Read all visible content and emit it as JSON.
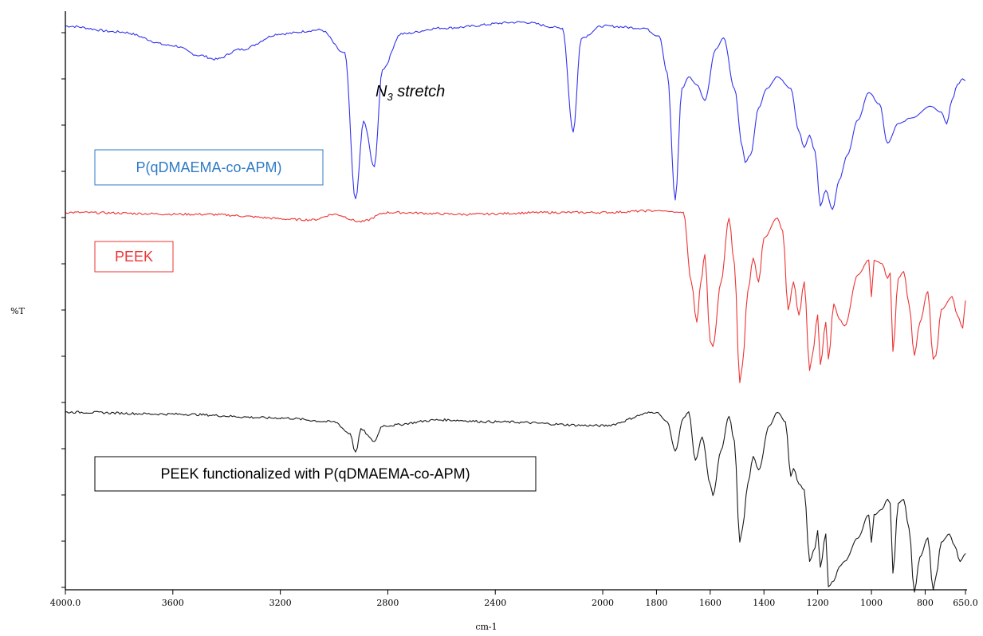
{
  "chart_data": {
    "type": "line",
    "xlabel": "cm-1",
    "ylabel": "%T",
    "xlim": [
      4000,
      650
    ],
    "x_reversed": true,
    "x_ticks": [
      "4000.0",
      "3600",
      "3200",
      "2800",
      "2400",
      "2000",
      "1800",
      "1600",
      "1400",
      "1200",
      "1000",
      "800",
      "650.0"
    ],
    "y_tick_count": 13,
    "y_tick_values_printed": false,
    "grid": false,
    "annotation": {
      "symbol": "N",
      "subscript": "3",
      "text": " stretch"
    },
    "series": [
      {
        "name": "P(qDMAEMA-co-APM)",
        "color": "#3333ee",
        "label_color": "#2e7bc4",
        "box_color": "#2e7bc4",
        "points": [
          [
            4000,
            0.94
          ],
          [
            3800,
            0.91
          ],
          [
            3600,
            0.84
          ],
          [
            3500,
            0.79
          ],
          [
            3440,
            0.77
          ],
          [
            3350,
            0.82
          ],
          [
            3200,
            0.9
          ],
          [
            3050,
            0.92
          ],
          [
            2960,
            0.8
          ],
          [
            2920,
            0.05
          ],
          [
            2890,
            0.45
          ],
          [
            2850,
            0.22
          ],
          [
            2820,
            0.72
          ],
          [
            2750,
            0.9
          ],
          [
            2600,
            0.93
          ],
          [
            2300,
            0.96
          ],
          [
            2150,
            0.93
          ],
          [
            2110,
            0.4
          ],
          [
            2080,
            0.88
          ],
          [
            2000,
            0.94
          ],
          [
            1850,
            0.93
          ],
          [
            1790,
            0.89
          ],
          [
            1760,
            0.7
          ],
          [
            1730,
            0.05
          ],
          [
            1705,
            0.62
          ],
          [
            1680,
            0.68
          ],
          [
            1650,
            0.64
          ],
          [
            1620,
            0.56
          ],
          [
            1580,
            0.82
          ],
          [
            1550,
            0.88
          ],
          [
            1510,
            0.62
          ],
          [
            1480,
            0.32
          ],
          [
            1470,
            0.24
          ],
          [
            1450,
            0.28
          ],
          [
            1420,
            0.52
          ],
          [
            1390,
            0.62
          ],
          [
            1350,
            0.68
          ],
          [
            1300,
            0.62
          ],
          [
            1270,
            0.4
          ],
          [
            1250,
            0.32
          ],
          [
            1230,
            0.38
          ],
          [
            1210,
            0.3
          ],
          [
            1190,
            0.02
          ],
          [
            1170,
            0.1
          ],
          [
            1145,
            0.0
          ],
          [
            1120,
            0.15
          ],
          [
            1090,
            0.28
          ],
          [
            1050,
            0.46
          ],
          [
            1010,
            0.6
          ],
          [
            970,
            0.54
          ],
          [
            940,
            0.34
          ],
          [
            900,
            0.44
          ],
          [
            850,
            0.47
          ],
          [
            780,
            0.53
          ],
          [
            740,
            0.5
          ],
          [
            720,
            0.44
          ],
          [
            700,
            0.56
          ],
          [
            680,
            0.64
          ],
          [
            660,
            0.67
          ],
          [
            650,
            0.66
          ]
        ]
      },
      {
        "name": "PEEK",
        "color": "#ee3333",
        "label_color": "#ee3333",
        "box_color": "#ee3333",
        "points": [
          [
            4000,
            0.98
          ],
          [
            3500,
            0.97
          ],
          [
            3080,
            0.94
          ],
          [
            3000,
            0.97
          ],
          [
            2900,
            0.93
          ],
          [
            2800,
            0.98
          ],
          [
            2500,
            0.97
          ],
          [
            2200,
            0.98
          ],
          [
            2000,
            0.98
          ],
          [
            1800,
            0.99
          ],
          [
            1700,
            0.98
          ],
          [
            1670,
            0.6
          ],
          [
            1650,
            0.38
          ],
          [
            1635,
            0.6
          ],
          [
            1620,
            0.75
          ],
          [
            1600,
            0.28
          ],
          [
            1590,
            0.25
          ],
          [
            1560,
            0.6
          ],
          [
            1530,
            0.95
          ],
          [
            1510,
            0.7
          ],
          [
            1490,
            0.05
          ],
          [
            1480,
            0.15
          ],
          [
            1460,
            0.55
          ],
          [
            1440,
            0.73
          ],
          [
            1420,
            0.6
          ],
          [
            1400,
            0.84
          ],
          [
            1350,
            0.95
          ],
          [
            1330,
            0.88
          ],
          [
            1310,
            0.45
          ],
          [
            1290,
            0.6
          ],
          [
            1270,
            0.42
          ],
          [
            1250,
            0.6
          ],
          [
            1230,
            0.12
          ],
          [
            1220,
            0.2
          ],
          [
            1200,
            0.42
          ],
          [
            1190,
            0.15
          ],
          [
            1170,
            0.38
          ],
          [
            1160,
            0.18
          ],
          [
            1140,
            0.48
          ],
          [
            1120,
            0.4
          ],
          [
            1100,
            0.36
          ],
          [
            1050,
            0.64
          ],
          [
            1010,
            0.72
          ],
          [
            1000,
            0.52
          ],
          [
            990,
            0.72
          ],
          [
            960,
            0.7
          ],
          [
            940,
            0.62
          ],
          [
            930,
            0.65
          ],
          [
            920,
            0.22
          ],
          [
            900,
            0.62
          ],
          [
            880,
            0.66
          ],
          [
            860,
            0.48
          ],
          [
            840,
            0.2
          ],
          [
            820,
            0.38
          ],
          [
            790,
            0.55
          ],
          [
            770,
            0.18
          ],
          [
            760,
            0.2
          ],
          [
            740,
            0.45
          ],
          [
            700,
            0.52
          ],
          [
            680,
            0.42
          ],
          [
            660,
            0.35
          ],
          [
            650,
            0.5
          ]
        ]
      },
      {
        "name": "PEEK functionalized with P(qDMAEMA-co-APM)",
        "color": "#1a1a1a",
        "label_color": "#000000",
        "box_color": "#000000",
        "points": [
          [
            4000,
            0.95
          ],
          [
            3600,
            0.94
          ],
          [
            3200,
            0.92
          ],
          [
            3000,
            0.9
          ],
          [
            2940,
            0.84
          ],
          [
            2920,
            0.74
          ],
          [
            2900,
            0.86
          ],
          [
            2850,
            0.8
          ],
          [
            2820,
            0.88
          ],
          [
            2600,
            0.91
          ],
          [
            2400,
            0.9
          ],
          [
            2000,
            0.88
          ],
          [
            1800,
            0.95
          ],
          [
            1760,
            0.9
          ],
          [
            1730,
            0.75
          ],
          [
            1700,
            0.92
          ],
          [
            1680,
            0.95
          ],
          [
            1655,
            0.7
          ],
          [
            1630,
            0.82
          ],
          [
            1600,
            0.58
          ],
          [
            1590,
            0.52
          ],
          [
            1560,
            0.75
          ],
          [
            1530,
            0.93
          ],
          [
            1510,
            0.8
          ],
          [
            1490,
            0.28
          ],
          [
            1480,
            0.35
          ],
          [
            1460,
            0.58
          ],
          [
            1440,
            0.72
          ],
          [
            1420,
            0.65
          ],
          [
            1380,
            0.88
          ],
          [
            1350,
            0.95
          ],
          [
            1320,
            0.9
          ],
          [
            1300,
            0.62
          ],
          [
            1290,
            0.66
          ],
          [
            1270,
            0.58
          ],
          [
            1250,
            0.55
          ],
          [
            1230,
            0.18
          ],
          [
            1210,
            0.25
          ],
          [
            1200,
            0.34
          ],
          [
            1190,
            0.15
          ],
          [
            1170,
            0.32
          ],
          [
            1160,
            0.05
          ],
          [
            1140,
            0.08
          ],
          [
            1120,
            0.15
          ],
          [
            1100,
            0.18
          ],
          [
            1050,
            0.3
          ],
          [
            1010,
            0.42
          ],
          [
            1000,
            0.28
          ],
          [
            990,
            0.42
          ],
          [
            960,
            0.45
          ],
          [
            940,
            0.5
          ],
          [
            930,
            0.48
          ],
          [
            920,
            0.12
          ],
          [
            900,
            0.48
          ],
          [
            880,
            0.5
          ],
          [
            860,
            0.35
          ],
          [
            840,
            0.02
          ],
          [
            820,
            0.2
          ],
          [
            790,
            0.3
          ],
          [
            770,
            0.03
          ],
          [
            760,
            0.1
          ],
          [
            740,
            0.28
          ],
          [
            710,
            0.32
          ],
          [
            690,
            0.26
          ],
          [
            670,
            0.18
          ],
          [
            650,
            0.22
          ]
        ]
      }
    ]
  }
}
